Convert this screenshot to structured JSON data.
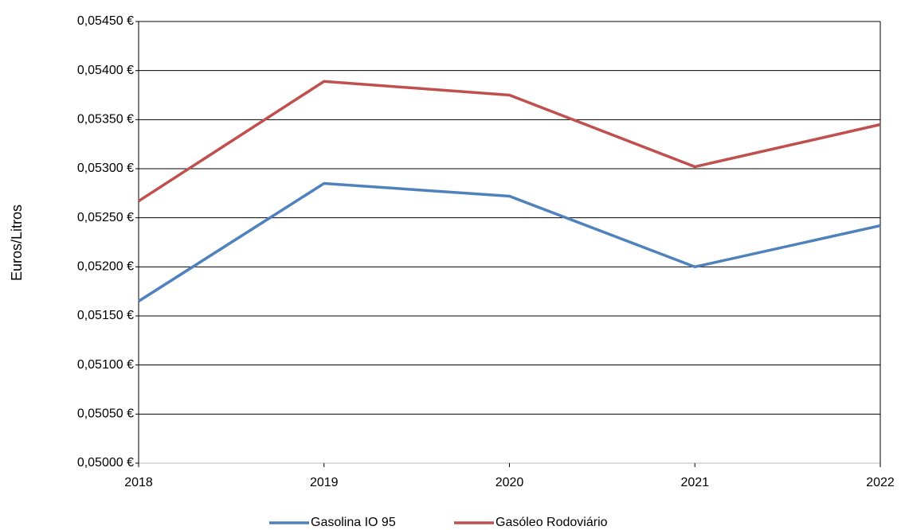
{
  "chart_data": {
    "type": "line",
    "y_label": "Euros/Litros",
    "x": [
      2018,
      2019,
      2020,
      2021,
      2022
    ],
    "xlim": [
      2018,
      2022
    ],
    "xticks": [
      2018,
      2019,
      2020,
      2021,
      2022
    ],
    "ylim": [
      0.05,
      0.0545
    ],
    "yticks": [
      {
        "value": 0.05,
        "label": "0,05000 €"
      },
      {
        "value": 0.0505,
        "label": "0,05050 €"
      },
      {
        "value": 0.051,
        "label": "0,05100 €"
      },
      {
        "value": 0.0515,
        "label": "0,05150 €"
      },
      {
        "value": 0.052,
        "label": "0,05200 €"
      },
      {
        "value": 0.0525,
        "label": "0,05250 €"
      },
      {
        "value": 0.053,
        "label": "0,05300 €"
      },
      {
        "value": 0.0535,
        "label": "0,05350 €"
      },
      {
        "value": 0.054,
        "label": "0,05400 €"
      },
      {
        "value": 0.0545,
        "label": "0,05450 €"
      }
    ],
    "grid": true,
    "legend": "bottom",
    "series": [
      {
        "name": "Gasolina IO 95",
        "color": "#4f81bd",
        "values": [
          0.05165,
          0.05285,
          0.05272,
          0.052,
          0.05242
        ]
      },
      {
        "name": "Gasóleo Rodoviário",
        "color": "#c0504d",
        "values": [
          0.05267,
          0.05389,
          0.05375,
          0.05302,
          0.05345
        ]
      }
    ]
  }
}
